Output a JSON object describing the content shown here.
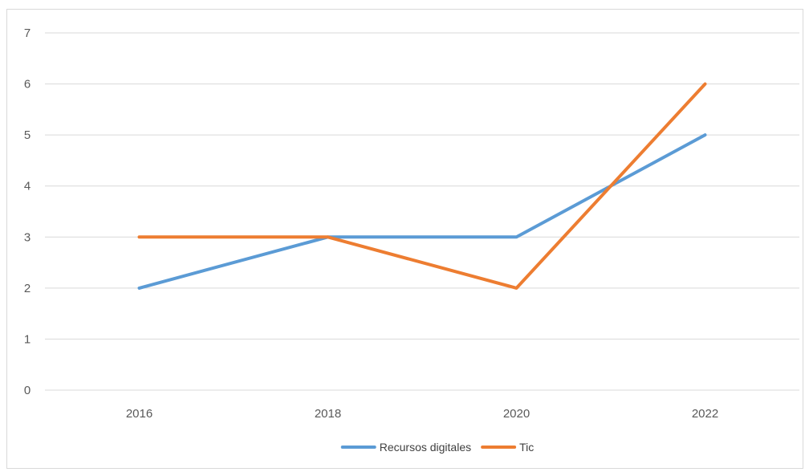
{
  "chart_data": {
    "type": "line",
    "title": "",
    "xlabel": "",
    "ylabel": "",
    "x": [
      "2016",
      "2018",
      "2020",
      "2022"
    ],
    "ylim": [
      0,
      7
    ],
    "yticks": [
      0,
      1,
      2,
      3,
      4,
      5,
      6,
      7
    ],
    "grid": true,
    "legend_position": "bottom",
    "series": [
      {
        "name": "Recursos digitales",
        "color": "#5b9bd5",
        "values": [
          2,
          3,
          3,
          5
        ]
      },
      {
        "name": "Tic",
        "color": "#ed7d31",
        "values": [
          3,
          3,
          2,
          6
        ]
      }
    ]
  }
}
